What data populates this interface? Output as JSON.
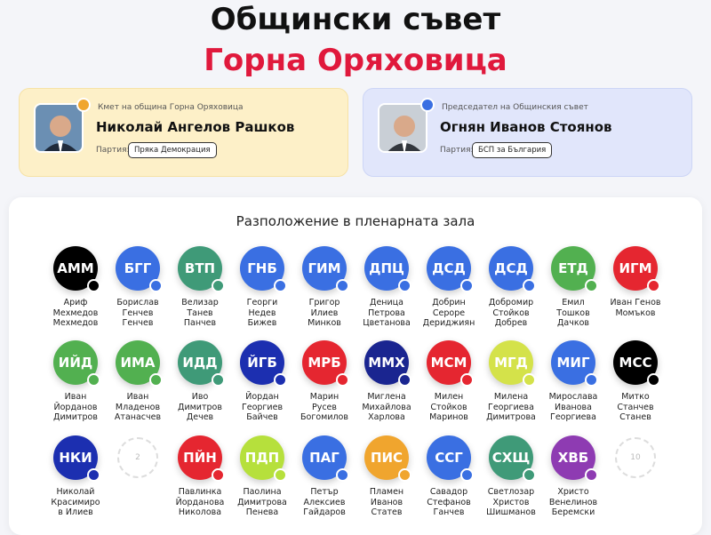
{
  "header": {
    "title": "Общински съвет",
    "subtitle": "Горна Оряховица"
  },
  "cards": [
    {
      "role": "Кмет на община Горна Оряховица",
      "name": "Николай Ангелов Рашков",
      "party_label": "Партия:",
      "party": "Пряка Демокрация",
      "theme": "yellow"
    },
    {
      "role": "Председател на Общинския съвет",
      "name": "Огнян Иванов Стоянов",
      "party_label": "Партия:",
      "party": "БСП за България",
      "theme": "blue"
    }
  ],
  "seating": {
    "title": "Разположение в пленарната зала",
    "rows": [
      [
        {
          "initials": "АММ",
          "color": "#000000",
          "name": [
            "Ариф",
            "Мехмедов",
            "Мехмедов"
          ]
        },
        {
          "initials": "БГГ",
          "color": "#3a6fe2",
          "name": [
            "Борислав",
            "Генчев",
            "Генчев"
          ]
        },
        {
          "initials": "ВТП",
          "color": "#3f9a78",
          "name": [
            "Велизар",
            "Танев",
            "Панчев"
          ]
        },
        {
          "initials": "ГНБ",
          "color": "#3a6fe2",
          "name": [
            "Георги",
            "Недев",
            "Бижев"
          ]
        },
        {
          "initials": "ГИМ",
          "color": "#3a6fe2",
          "name": [
            "Григор",
            "Илиев",
            "Минков"
          ]
        },
        {
          "initials": "ДПЦ",
          "color": "#3a6fe2",
          "name": [
            "Деница",
            "Петрова",
            "Цветанова"
          ]
        },
        {
          "initials": "ДСД",
          "color": "#3a6fe2",
          "name": [
            "Добрин",
            "Сероре",
            "Дериджиян"
          ]
        },
        {
          "initials": "ДСД",
          "color": "#3a6fe2",
          "name": [
            "Добромир",
            "Стойков",
            "Добрев"
          ]
        },
        {
          "initials": "ЕТД",
          "color": "#52b050",
          "name": [
            "Емил",
            "Тошков",
            "Дачков"
          ]
        },
        {
          "initials": "ИГМ",
          "color": "#e52630",
          "name": [
            "Иван Генов",
            "Момъков"
          ]
        }
      ],
      [
        {
          "initials": "ИЙД",
          "color": "#52b050",
          "name": [
            "Иван",
            "Йорданов",
            "Димитров"
          ]
        },
        {
          "initials": "ИМА",
          "color": "#52b050",
          "name": [
            "Иван",
            "Младенов",
            "Атанасчев"
          ]
        },
        {
          "initials": "ИДД",
          "color": "#3f9a78",
          "name": [
            "Иво",
            "Димитров",
            "Дечев"
          ]
        },
        {
          "initials": "ЙГБ",
          "color": "#1c2fb0",
          "name": [
            "Йордан",
            "Георгиев",
            "Байчев"
          ]
        },
        {
          "initials": "МРБ",
          "color": "#e52630",
          "name": [
            "Марин",
            "Русев",
            "Богомилов"
          ]
        },
        {
          "initials": "ММХ",
          "color": "#1a2590",
          "name": [
            "Миглена",
            "Михайлова",
            "Харлова"
          ]
        },
        {
          "initials": "МСМ",
          "color": "#e52630",
          "name": [
            "Милен",
            "Стойков",
            "Маринов"
          ]
        },
        {
          "initials": "МГД",
          "color": "#d4e24a",
          "name": [
            "Милена",
            "Георгиева",
            "Димитрова"
          ]
        },
        {
          "initials": "МИГ",
          "color": "#3a6fe2",
          "name": [
            "Мирослава",
            "Иванова",
            "Георгиева"
          ]
        },
        {
          "initials": "МСС",
          "color": "#000000",
          "name": [
            "Митко",
            "Станчев",
            "Станев"
          ]
        }
      ],
      [
        {
          "initials": "НКИ",
          "color": "#1c2fb0",
          "name": [
            "Николай",
            "Красимиро",
            "в Илиев"
          ]
        },
        {
          "empty": "2"
        },
        {
          "initials": "ПЙН",
          "color": "#e52630",
          "name": [
            "Павлинка",
            "Йорданова",
            "Николова"
          ]
        },
        {
          "initials": "ПДП",
          "color": "#b6e03c",
          "name": [
            "Паолина",
            "Димитрова",
            "Пенева"
          ]
        },
        {
          "initials": "ПАГ",
          "color": "#3a6fe2",
          "name": [
            "Петър",
            "Алексиев",
            "Гайдаров"
          ]
        },
        {
          "initials": "ПИС",
          "color": "#f0a52e",
          "name": [
            "Пламен",
            "Иванов",
            "Статев"
          ]
        },
        {
          "initials": "ССГ",
          "color": "#3a6fe2",
          "name": [
            "Савадор",
            "Стефанов",
            "Ганчев"
          ]
        },
        {
          "initials": "СХЩ",
          "color": "#3f9a78",
          "name": [
            "Светлозар",
            "Христов",
            "Шишманов"
          ]
        },
        {
          "initials": "ХВБ",
          "color": "#8e3bb2",
          "name": [
            "Христо",
            "Венелинов",
            "Беремски"
          ]
        },
        {
          "empty": "10"
        }
      ]
    ]
  }
}
